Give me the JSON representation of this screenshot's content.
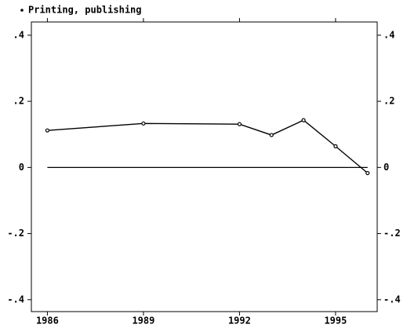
{
  "chart_data": {
    "type": "line",
    "x": [
      1986,
      1989,
      1992,
      1993,
      1994,
      1995,
      1996
    ],
    "series": [
      {
        "name": "Printing, publishing",
        "color": "#000000",
        "values": [
          0.112,
          0.133,
          0.131,
          0.098,
          0.143,
          0.064,
          -0.017
        ]
      }
    ],
    "xlim": [
      1985.5,
      1996.3
    ],
    "xticks": [
      1986,
      1989,
      1992,
      1995
    ],
    "ylim": [
      -0.436,
      0.44
    ],
    "yticks": [
      {
        "value": 0.4,
        "label": ".4"
      },
      {
        "value": 0.2,
        "label": ".2"
      },
      0,
      {
        "value": -0.2,
        "label": "-.2"
      },
      {
        "value": -0.4,
        "label": "-.4"
      }
    ],
    "yline": 0,
    "legend": "top-left"
  }
}
